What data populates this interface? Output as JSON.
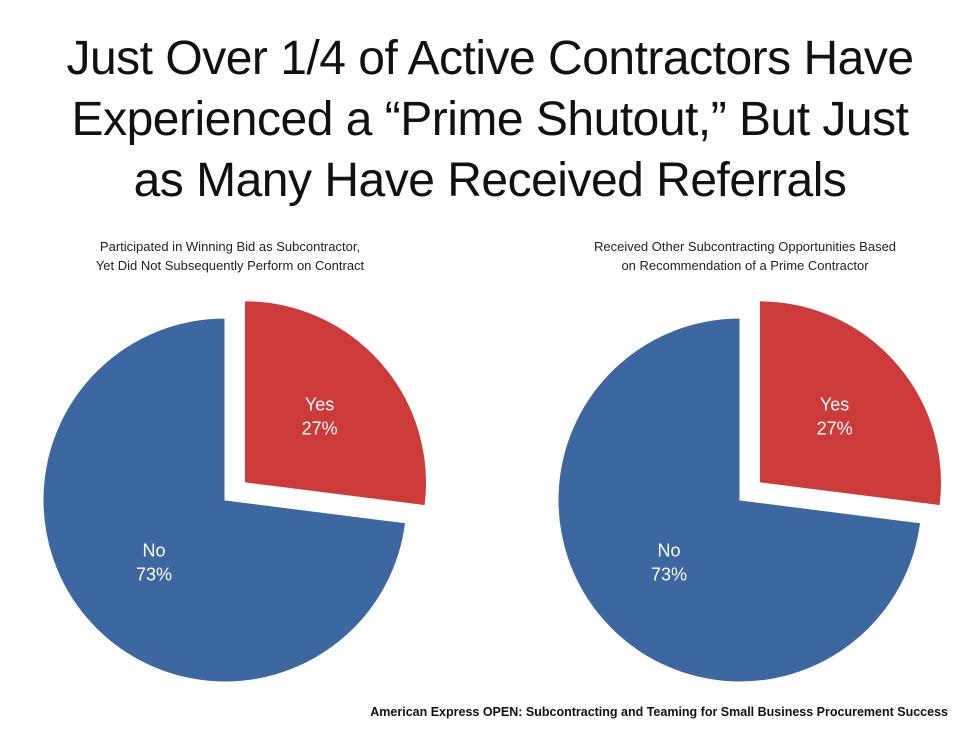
{
  "title_lines": [
    "Just Over 1/4 of Active Contractors Have",
    "Experienced a “Prime Shutout,” But Just",
    "as Many Have Received Referrals"
  ],
  "source": "American Express OPEN:  Subcontracting and Teaming for Small Business Procurement Success",
  "colors": {
    "yes": "#cc3a3a",
    "no": "#3c67a0"
  },
  "chart_data": [
    {
      "type": "pie",
      "title_lines": [
        "Participated in Winning Bid as Subcontractor,",
        "Yet Did Not Subsequently Perform on Contract"
      ],
      "slices": [
        {
          "label": "Yes",
          "value": 27,
          "display": "27%",
          "exploded": true,
          "color": "#cc3a3a"
        },
        {
          "label": "No",
          "value": 73,
          "display": "73%",
          "exploded": false,
          "color": "#3c67a0"
        }
      ]
    },
    {
      "type": "pie",
      "title_lines": [
        "Received Other Subcontracting Opportunities Based",
        "on Recommendation of a Prime Contractor"
      ],
      "slices": [
        {
          "label": "Yes",
          "value": 27,
          "display": "27%",
          "exploded": true,
          "color": "#cc3a3a"
        },
        {
          "label": "No",
          "value": 73,
          "display": "73%",
          "exploded": false,
          "color": "#3c67a0"
        }
      ]
    }
  ]
}
